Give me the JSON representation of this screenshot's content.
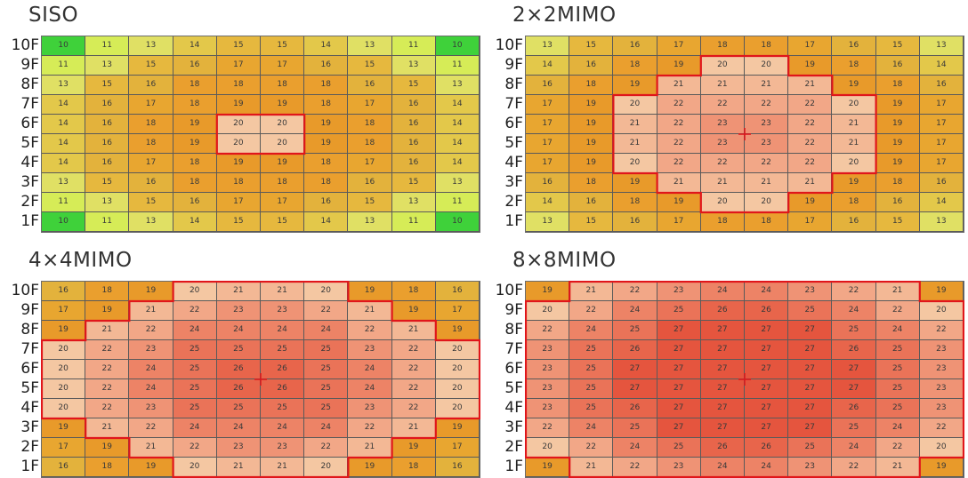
{
  "floors": [
    "10F",
    "9F",
    "8F",
    "7F",
    "6F",
    "5F",
    "4F",
    "3F",
    "2F",
    "1F"
  ],
  "panels": [
    {
      "title": "SISO",
      "values": [
        [
          10,
          11,
          13,
          14,
          15,
          15,
          14,
          13,
          11,
          10
        ],
        [
          11,
          13,
          15,
          16,
          17,
          17,
          16,
          15,
          13,
          11
        ],
        [
          13,
          15,
          16,
          18,
          18,
          18,
          18,
          16,
          15,
          13
        ],
        [
          14,
          16,
          17,
          18,
          19,
          19,
          18,
          17,
          16,
          14
        ],
        [
          14,
          16,
          18,
          19,
          20,
          20,
          19,
          18,
          16,
          14
        ],
        [
          14,
          16,
          18,
          19,
          20,
          20,
          19,
          18,
          16,
          14
        ],
        [
          14,
          16,
          17,
          18,
          19,
          19,
          18,
          17,
          16,
          14
        ],
        [
          13,
          15,
          16,
          18,
          18,
          18,
          18,
          16,
          15,
          13
        ],
        [
          11,
          13,
          15,
          16,
          17,
          17,
          16,
          15,
          13,
          11
        ],
        [
          10,
          11,
          13,
          14,
          15,
          15,
          14,
          13,
          11,
          10
        ]
      ]
    },
    {
      "title": "2×2MIMO",
      "values": [
        [
          13,
          15,
          16,
          17,
          18,
          18,
          17,
          16,
          15,
          13
        ],
        [
          14,
          16,
          18,
          19,
          20,
          20,
          19,
          18,
          16,
          14
        ],
        [
          16,
          18,
          19,
          21,
          21,
          21,
          21,
          19,
          18,
          16
        ],
        [
          17,
          19,
          20,
          22,
          22,
          22,
          22,
          20,
          19,
          17
        ],
        [
          17,
          19,
          21,
          22,
          23,
          23,
          22,
          21,
          19,
          17
        ],
        [
          17,
          19,
          21,
          22,
          23,
          23,
          22,
          21,
          19,
          17
        ],
        [
          17,
          19,
          20,
          22,
          22,
          22,
          22,
          20,
          19,
          17
        ],
        [
          16,
          18,
          19,
          21,
          21,
          21,
          21,
          19,
          18,
          16
        ],
        [
          14,
          16,
          18,
          19,
          20,
          20,
          19,
          18,
          16,
          14
        ],
        [
          13,
          15,
          16,
          17,
          18,
          18,
          17,
          16,
          15,
          13
        ]
      ]
    },
    {
      "title": "4×4MIMO",
      "values": [
        [
          16,
          18,
          19,
          20,
          21,
          21,
          20,
          19,
          18,
          16
        ],
        [
          17,
          19,
          21,
          22,
          23,
          23,
          22,
          21,
          19,
          17
        ],
        [
          19,
          21,
          22,
          24,
          24,
          24,
          24,
          22,
          21,
          19
        ],
        [
          20,
          22,
          23,
          25,
          25,
          25,
          25,
          23,
          22,
          20
        ],
        [
          20,
          22,
          24,
          25,
          26,
          26,
          25,
          24,
          22,
          20
        ],
        [
          20,
          22,
          24,
          25,
          26,
          26,
          25,
          24,
          22,
          20
        ],
        [
          20,
          22,
          23,
          25,
          25,
          25,
          25,
          23,
          22,
          20
        ],
        [
          19,
          21,
          22,
          24,
          24,
          24,
          24,
          22,
          21,
          19
        ],
        [
          17,
          19,
          21,
          22,
          23,
          23,
          22,
          21,
          19,
          17
        ],
        [
          16,
          18,
          19,
          20,
          21,
          21,
          20,
          19,
          18,
          16
        ]
      ]
    },
    {
      "title": "8×8MIMO",
      "values": [
        [
          19,
          21,
          22,
          23,
          24,
          24,
          23,
          22,
          21,
          19
        ],
        [
          20,
          22,
          24,
          25,
          26,
          26,
          25,
          24,
          22,
          20
        ],
        [
          22,
          24,
          25,
          27,
          27,
          27,
          27,
          25,
          24,
          22
        ],
        [
          23,
          25,
          26,
          27,
          27,
          27,
          27,
          26,
          25,
          23
        ],
        [
          23,
          25,
          27,
          27,
          27,
          27,
          27,
          27,
          25,
          23
        ],
        [
          23,
          25,
          27,
          27,
          27,
          27,
          27,
          27,
          25,
          23
        ],
        [
          23,
          25,
          26,
          27,
          27,
          27,
          27,
          26,
          25,
          23
        ],
        [
          22,
          24,
          25,
          27,
          27,
          27,
          27,
          25,
          24,
          22
        ],
        [
          20,
          22,
          24,
          25,
          26,
          26,
          25,
          24,
          22,
          20
        ],
        [
          19,
          21,
          22,
          23,
          24,
          24,
          23,
          22,
          21,
          19
        ]
      ]
    }
  ],
  "colors": {
    "v10": "#3fd13a",
    "v11": "#d6ec57",
    "v13": "#e0e064",
    "v14": "#e3c84a",
    "v15": "#e6b83e",
    "v16": "#e3b23c",
    "v17": "#e8a630",
    "v18": "#ea9f2e",
    "v19": "#e89a2a",
    "v20": "#f4c7a2",
    "v21": "#f3b895",
    "v22": "#f2a787",
    "v23": "#ef9375",
    "v24": "#ed8366",
    "v25": "#ea7358",
    "v26": "#e8654b",
    "v27": "#e5553e",
    "outline": "#e0161b"
  }
}
